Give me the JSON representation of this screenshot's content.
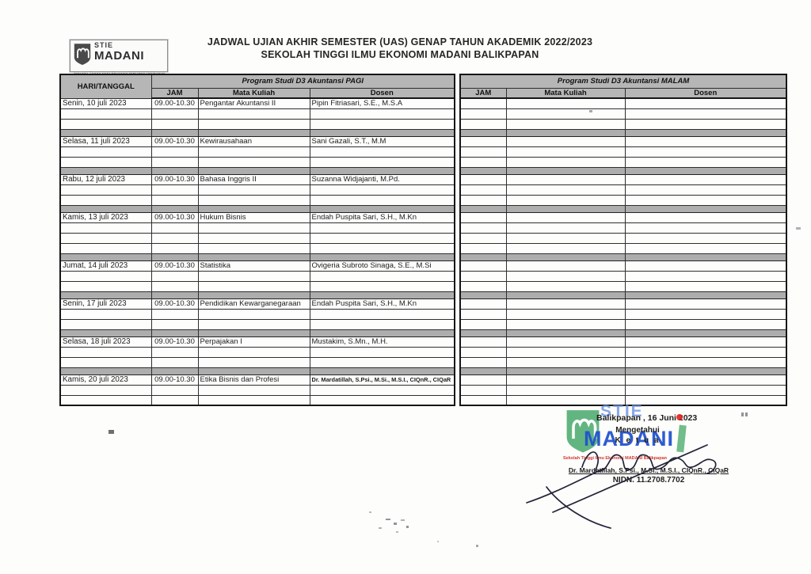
{
  "doc": {
    "title_line1": "JADWAL UJIAN AKHIR SEMESTER (UAS) GENAP TAHUN AKADEMIK 2022/2023",
    "title_line2": "SEKOLAH TINGGI ILMU EKONOMI MADANI  BALIKPAPAN"
  },
  "logo": {
    "line1": "STIE",
    "line2": "MADANI",
    "tagline": "Sekolah Tinggi Ilmu Ekonomi MADANI Balikpapan"
  },
  "table": {
    "corner_header": "HARI/TANGGAL",
    "pagi": {
      "title": "Program Studi D3 Akuntansi PAGI",
      "columns": [
        "JAM",
        "Mata Kuliah",
        "Dosen"
      ]
    },
    "malam": {
      "title": "Program Studi D3 Akuntansi MALAM",
      "columns": [
        "JAM",
        "Mata Kuliah",
        "Dosen"
      ]
    },
    "blocks": [
      {
        "date": "Senin, 10 juli 2023",
        "jam": "09.00-10.30",
        "course": "Pengantar Akuntansi II",
        "lecturer": "Pipin Fitriasari, S.E., M.S.A",
        "blank_rows": 2
      },
      {
        "date": "Selasa, 11 juli 2023",
        "jam": "09.00-10.30",
        "course": "Kewirausahaan",
        "lecturer": "Sani Gazali, S.T., M.M",
        "blank_rows": 2
      },
      {
        "date": "Rabu, 12 juli 2023",
        "jam": "09.00-10.30",
        "course": "Bahasa Inggris II",
        "lecturer": "Suzanna Widjajanti, M.Pd.",
        "blank_rows": 2
      },
      {
        "date": "Kamis, 13 juli 2023",
        "jam": "09.00-10.30",
        "course": "Hukum Bisnis",
        "lecturer": "Endah Puspita Sari, S.H., M.Kn",
        "blank_rows": 3
      },
      {
        "date": "Jumat, 14 juli 2023",
        "jam": "09.00-10.30",
        "course": "Statistika",
        "lecturer": "Ovigeria Subroto Sinaga, S.E., M.Si",
        "blank_rows": 2
      },
      {
        "date": "Senin, 17 juli 2023",
        "jam": "09.00-10.30",
        "course": "Pendidikan Kewarganegaraan",
        "lecturer": "Endah Puspita Sari, S.H., M.Kn",
        "blank_rows": 2
      },
      {
        "date": "Selasa, 18 juli 2023",
        "jam": "09.00-10.30",
        "course": "Perpajakan I",
        "lecturer": "Mustakim, S.Mn., M.H.",
        "blank_rows": 2
      },
      {
        "date": "Kamis, 20 juli 2023",
        "jam": "09.00-10.30",
        "course": "Etika Bisnis dan Profesi",
        "lecturer": "Dr. Mardatillah, S.Psi., M.Si., M.S.I., CIQnR., CIQaR",
        "blank_rows": 2
      }
    ]
  },
  "signature": {
    "place_date": "Balikpapan , 16 Juni 2023",
    "line1": "Mengetahui",
    "line2": "K e t u a",
    "name": "Dr. Mardatillah, S.Psi., M.Si., M.S.I., CIQnR., CIQaR",
    "nidn": "NIDN. 11.2708.7702"
  },
  "stamp": {
    "line1": "STIE",
    "line2": "MADANI",
    "tagline": "Sekolah Tinggi Ilmu Ekonomi MADANI Balikpapan"
  },
  "colors": {
    "header_gray": "#b6b6b6",
    "separator_gray": "#adadad",
    "stamp_blue": "#2050cf",
    "stamp_green": "#44a566",
    "stamp_red": "#d6352f",
    "red_dot": "#e02420"
  }
}
